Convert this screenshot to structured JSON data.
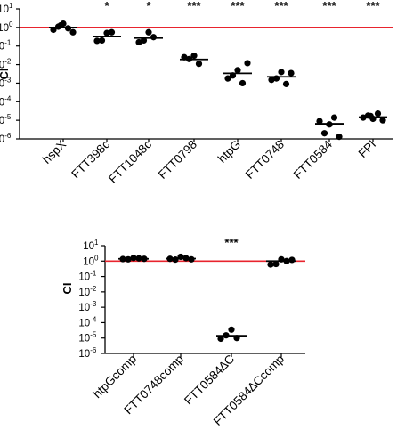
{
  "chart_data": [
    {
      "type": "scatter",
      "title": "",
      "xlabel": "",
      "ylabel": "CI",
      "yscale": "log",
      "ylim": [
        1e-06,
        10
      ],
      "ytick_exponents": [
        "1",
        "0",
        "-1",
        "-2",
        "-3",
        "-4",
        "-5",
        "-6"
      ],
      "reference_line": {
        "y": 1,
        "color": "#e8242e"
      },
      "point_color": "#000000",
      "categories": [
        "hspX",
        "FTT398c",
        "FTT1048c",
        "FTT0798",
        "htpG",
        "FTT0748",
        "FTT0584",
        "FPI"
      ],
      "significance": [
        "",
        "*",
        "*",
        "***",
        "***",
        "***",
        "***",
        "***"
      ],
      "points": [
        [
          1.6,
          1.1,
          0.9,
          0.75,
          0.55,
          1.3
        ],
        [
          0.5,
          0.2,
          0.55,
          0.19
        ],
        [
          0.55,
          0.2,
          0.3,
          0.16
        ],
        [
          0.03,
          0.02,
          0.011,
          0.025
        ],
        [
          0.005,
          0.0026,
          0.001,
          0.0018,
          0.012
        ],
        [
          0.004,
          0.0018,
          0.0009,
          0.0015,
          0.0035
        ],
        [
          6e-06,
          2e-06,
          1.4e-05,
          9e-06,
          1.3e-06
        ],
        [
          1.2e-05,
          1.8e-05,
          2.3e-05,
          1.4e-05,
          1e-05,
          1.7e-05
        ]
      ],
      "medians": [
        1.0,
        0.33,
        0.27,
        0.019,
        0.0034,
        0.0022,
        6.5e-06,
        1.5e-05
      ]
    },
    {
      "type": "scatter",
      "title": "",
      "xlabel": "",
      "ylabel": "CI",
      "yscale": "log",
      "ylim": [
        1e-06,
        10
      ],
      "ytick_exponents": [
        "1",
        "0",
        "-1",
        "-2",
        "-3",
        "-4",
        "-5",
        "-6"
      ],
      "reference_line": {
        "y": 1,
        "color": "#e8242e"
      },
      "point_color": "#000000",
      "categories": [
        "htpGcomp",
        "FTT0748comp",
        "FTT0584∆C",
        "FTT0584∆Ccomp"
      ],
      "significance": [
        "",
        "",
        "***",
        ""
      ],
      "points": [
        [
          1.6,
          1.3,
          1.5,
          1.35,
          1.4
        ],
        [
          1.9,
          1.25,
          1.55,
          1.4,
          1.3
        ],
        [
          3.5e-05,
          1.5e-05,
          1e-05,
          9e-06
        ],
        [
          1.3,
          0.65,
          1.0,
          0.6,
          1.2
        ]
      ],
      "medians": [
        1.4,
        1.45,
        1.4e-05,
        1.0
      ]
    }
  ]
}
